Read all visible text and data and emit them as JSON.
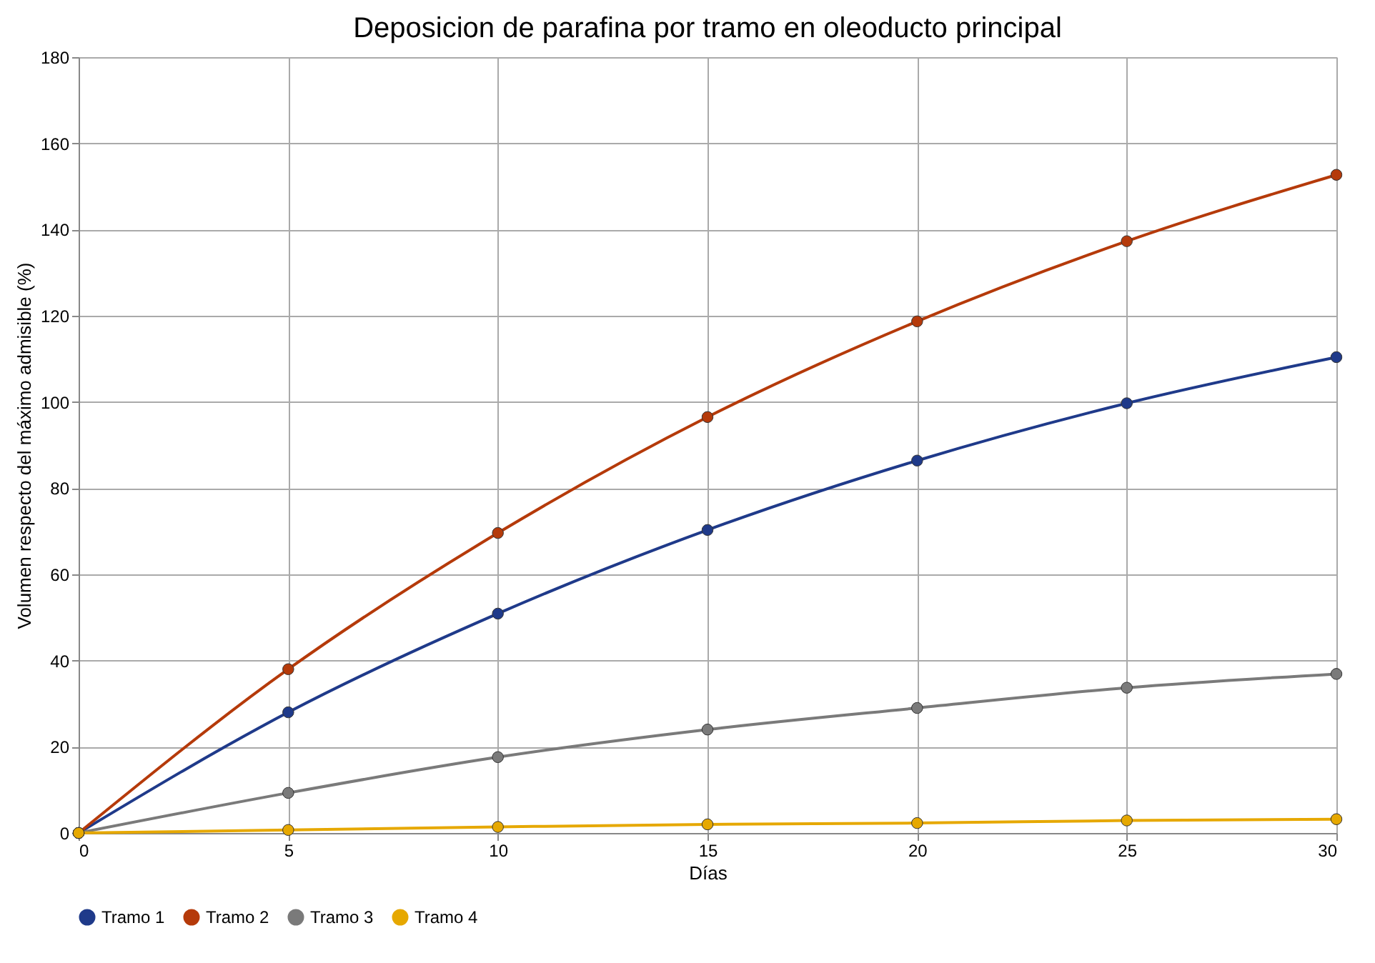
{
  "chart_data": {
    "type": "line",
    "title": "Deposicion de parafina por tramo en oleoducto principal",
    "xlabel": "Días",
    "ylabel": "Volumen respecto del máximo admisible (%)",
    "x": [
      0,
      5,
      10,
      15,
      20,
      25,
      30
    ],
    "series": [
      {
        "name": "Tramo 1",
        "color": "#1f3a8a",
        "values": [
          0,
          28.0,
          50.9,
          70.3,
          86.4,
          99.7,
          110.4
        ]
      },
      {
        "name": "Tramo 2",
        "color": "#b53a0a",
        "values": [
          0,
          38.0,
          69.6,
          96.5,
          118.7,
          137.3,
          152.7
        ]
      },
      {
        "name": "Tramo 3",
        "color": "#7a7a7a",
        "values": [
          0,
          9.3,
          17.6,
          24.0,
          29.0,
          33.7,
          36.9
        ]
      },
      {
        "name": "Tramo 4",
        "color": "#e6a800",
        "values": [
          0,
          0.7,
          1.4,
          2.0,
          2.3,
          2.9,
          3.2
        ]
      }
    ],
    "xlim": [
      0,
      30
    ],
    "xticks": [
      0,
      5,
      10,
      15,
      20,
      25,
      30
    ],
    "ylim": [
      0,
      180
    ],
    "yticks": [
      0,
      20,
      40,
      60,
      80,
      100,
      120,
      140,
      160,
      180
    ],
    "grid": true,
    "legend": "bottom",
    "marker": "circle",
    "line_style": "solid"
  }
}
